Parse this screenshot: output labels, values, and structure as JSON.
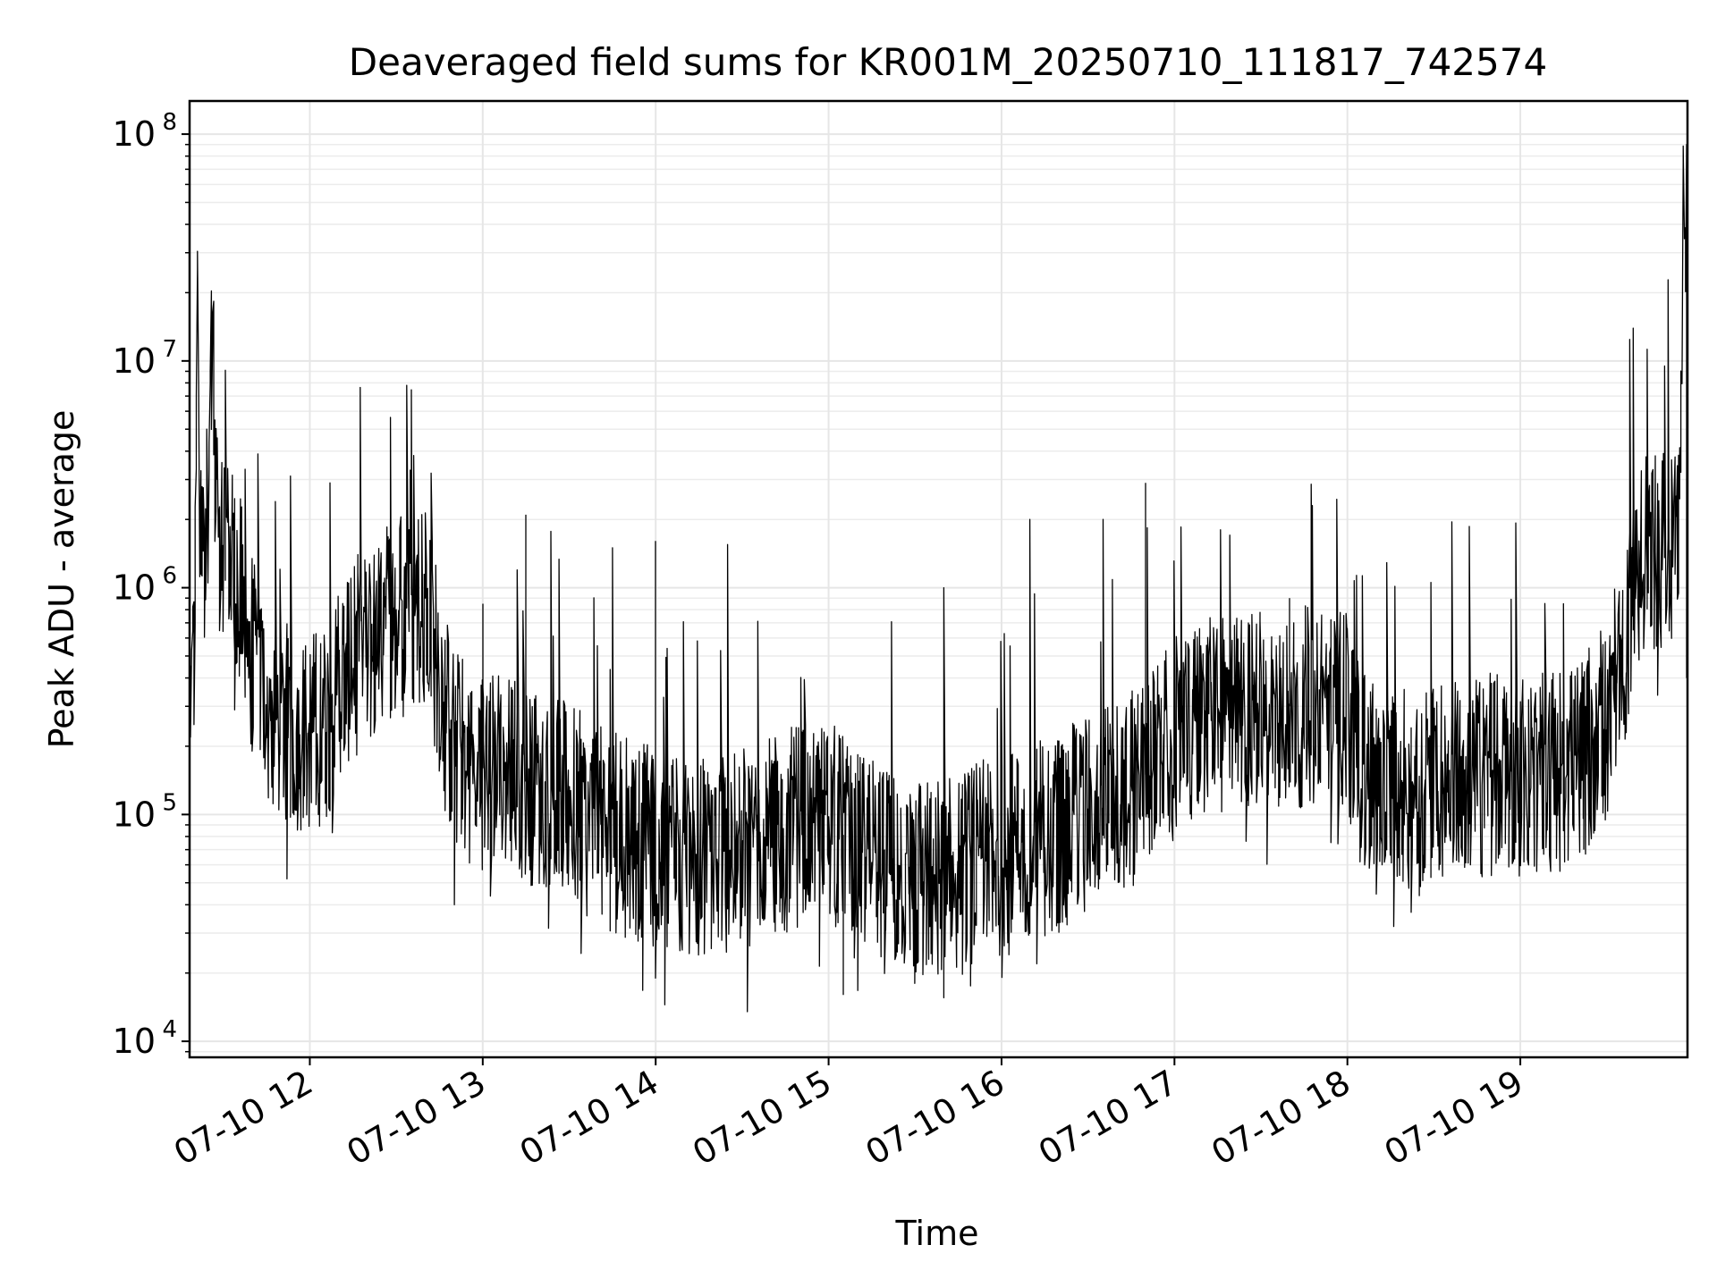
{
  "chart_data": {
    "type": "line",
    "title": "Deaveraged field sums for KR001M_20250710_111817_742574",
    "xlabel": "Time",
    "ylabel": "Peak ADU - average",
    "yscale": "log",
    "ylim": [
      8500,
      140000000
    ],
    "xlim": [
      "2025-07-10T11:18:17",
      "2025-07-10T19:58:00"
    ],
    "xticks": [
      {
        "t": "2025-07-10T12:00:00",
        "label": "07-10 12"
      },
      {
        "t": "2025-07-10T13:00:00",
        "label": "07-10 13"
      },
      {
        "t": "2025-07-10T14:00:00",
        "label": "07-10 14"
      },
      {
        "t": "2025-07-10T15:00:00",
        "label": "07-10 15"
      },
      {
        "t": "2025-07-10T16:00:00",
        "label": "07-10 16"
      },
      {
        "t": "2025-07-10T17:00:00",
        "label": "07-10 17"
      },
      {
        "t": "2025-07-10T18:00:00",
        "label": "07-10 18"
      },
      {
        "t": "2025-07-10T19:00:00",
        "label": "07-10 19"
      }
    ],
    "yticks": [
      {
        "value": 10000,
        "base": "10",
        "exp": "4"
      },
      {
        "value": 100000,
        "base": "10",
        "exp": "5"
      },
      {
        "value": 1000000,
        "base": "10",
        "exp": "6"
      },
      {
        "value": 10000000,
        "base": "10",
        "exp": "7"
      },
      {
        "value": 100000000,
        "base": "10",
        "exp": "8"
      }
    ],
    "grid": true,
    "line_color": "#000000",
    "grid_color": "#e6e6e6",
    "series": [
      {
        "x": [
          "2025-07-10T11:18:17",
          "2025-07-10T11:20:00",
          "2025-07-10T11:21:00",
          "2025-07-10T11:22:00",
          "2025-07-10T11:24:00",
          "2025-07-10T11:26:00",
          "2025-07-10T11:28:00",
          "2025-07-10T11:30:00",
          "2025-07-10T11:32:00",
          "2025-07-10T11:34:00",
          "2025-07-10T11:36:00",
          "2025-07-10T11:38:00",
          "2025-07-10T11:40:00",
          "2025-07-10T11:43:00",
          "2025-07-10T11:46:00",
          "2025-07-10T11:50:00",
          "2025-07-10T11:54:00",
          "2025-07-10T11:58:00",
          "2025-07-10T12:02:00",
          "2025-07-10T12:06:00",
          "2025-07-10T12:10:00",
          "2025-07-10T12:15:00",
          "2025-07-10T12:20:00",
          "2025-07-10T12:25:00",
          "2025-07-10T12:30:00",
          "2025-07-10T12:35:00",
          "2025-07-10T12:40:00",
          "2025-07-10T12:44:00",
          "2025-07-10T12:47:00",
          "2025-07-10T12:50:00",
          "2025-07-10T12:55:00",
          "2025-07-10T13:00:00",
          "2025-07-10T13:10:00",
          "2025-07-10T13:20:00",
          "2025-07-10T13:30:00",
          "2025-07-10T13:40:00",
          "2025-07-10T13:50:00",
          "2025-07-10T14:00:00",
          "2025-07-10T14:10:00",
          "2025-07-10T14:20:00",
          "2025-07-10T14:30:00",
          "2025-07-10T14:40:00",
          "2025-07-10T14:50:00",
          "2025-07-10T15:00:00",
          "2025-07-10T15:10:00",
          "2025-07-10T15:20:00",
          "2025-07-10T15:30:00",
          "2025-07-10T15:40:00",
          "2025-07-10T15:50:00",
          "2025-07-10T16:00:00",
          "2025-07-10T16:10:00",
          "2025-07-10T16:20:00",
          "2025-07-10T16:30:00",
          "2025-07-10T16:40:00",
          "2025-07-10T16:50:00",
          "2025-07-10T17:00:00",
          "2025-07-10T17:10:00",
          "2025-07-10T17:20:00",
          "2025-07-10T17:30:00",
          "2025-07-10T17:40:00",
          "2025-07-10T17:50:00",
          "2025-07-10T18:00:00",
          "2025-07-10T18:05:00",
          "2025-07-10T18:10:00",
          "2025-07-10T18:20:00",
          "2025-07-10T18:30:00",
          "2025-07-10T18:40:00",
          "2025-07-10T18:50:00",
          "2025-07-10T19:00:00",
          "2025-07-10T19:10:00",
          "2025-07-10T19:20:00",
          "2025-07-10T19:25:00",
          "2025-07-10T19:30:00",
          "2025-07-10T19:35:00",
          "2025-07-10T19:40:00",
          "2025-07-10T19:45:00",
          "2025-07-10T19:50:00",
          "2025-07-10T19:55:00",
          "2025-07-10T19:57:00",
          "2025-07-10T19:58:00"
        ],
        "y": [
          300000,
          500000,
          42000000,
          1200000,
          1500000,
          16000000,
          1400000,
          1800000,
          1300000,
          1100000,
          900000,
          650000,
          500000,
          350000,
          300000,
          260000,
          240000,
          230000,
          240000,
          260000,
          400000,
          500000,
          520000,
          650000,
          800000,
          900000,
          800000,
          500000,
          280000,
          200000,
          170000,
          160000,
          150000,
          130000,
          110000,
          90000,
          80000,
          70000,
          65000,
          65000,
          70000,
          80000,
          90000,
          95000,
          70000,
          55000,
          50000,
          55000,
          60000,
          65000,
          75000,
          85000,
          100000,
          120000,
          150000,
          220000,
          260000,
          280000,
          290000,
          300000,
          300000,
          290000,
          150000,
          130000,
          130000,
          140000,
          140000,
          150000,
          150000,
          150000,
          170000,
          200000,
          300000,
          400000,
          1300000,
          1400000,
          1500000,
          1700000,
          90000000,
          400000
        ],
        "spikes": [
          {
            "x": "2025-07-10T11:48:00",
            "y": 2400000
          },
          {
            "x": "2025-07-10T11:52:00",
            "y": 52000
          },
          {
            "x": "2025-07-10T12:07:00",
            "y": 2900000
          },
          {
            "x": "2025-07-10T12:35:00",
            "y": 3300000
          },
          {
            "x": "2025-07-10T12:42:00",
            "y": 3200000
          },
          {
            "x": "2025-07-10T12:50:00",
            "y": 40000
          },
          {
            "x": "2025-07-10T13:00:00",
            "y": 850000
          },
          {
            "x": "2025-07-10T13:15:00",
            "y": 2100000
          },
          {
            "x": "2025-07-10T13:45:00",
            "y": 1500000
          },
          {
            "x": "2025-07-10T14:00:00",
            "y": 1600000
          },
          {
            "x": "2025-07-10T14:00:00",
            "y": 19000
          },
          {
            "x": "2025-07-10T14:25:00",
            "y": 1550000
          },
          {
            "x": "2025-07-10T14:32:00",
            "y": 13500
          },
          {
            "x": "2025-07-10T15:05:00",
            "y": 16000
          },
          {
            "x": "2025-07-10T15:30:00",
            "y": 18000
          },
          {
            "x": "2025-07-10T15:40:00",
            "y": 1000000
          },
          {
            "x": "2025-07-10T16:10:00",
            "y": 2000000
          },
          {
            "x": "2025-07-10T16:35:00",
            "y": 2000000
          },
          {
            "x": "2025-07-10T16:50:00",
            "y": 2900000
          },
          {
            "x": "2025-07-10T17:16:00",
            "y": 1800000
          },
          {
            "x": "2025-07-10T17:40:00",
            "y": 900000
          },
          {
            "x": "2025-07-10T18:25:00",
            "y": 52000
          },
          {
            "x": "2025-07-10T19:15:00",
            "y": 850000
          },
          {
            "x": "2025-07-10T19:22:00",
            "y": 70000
          },
          {
            "x": "2025-07-10T19:50:00",
            "y": 9500000
          }
        ]
      }
    ]
  }
}
